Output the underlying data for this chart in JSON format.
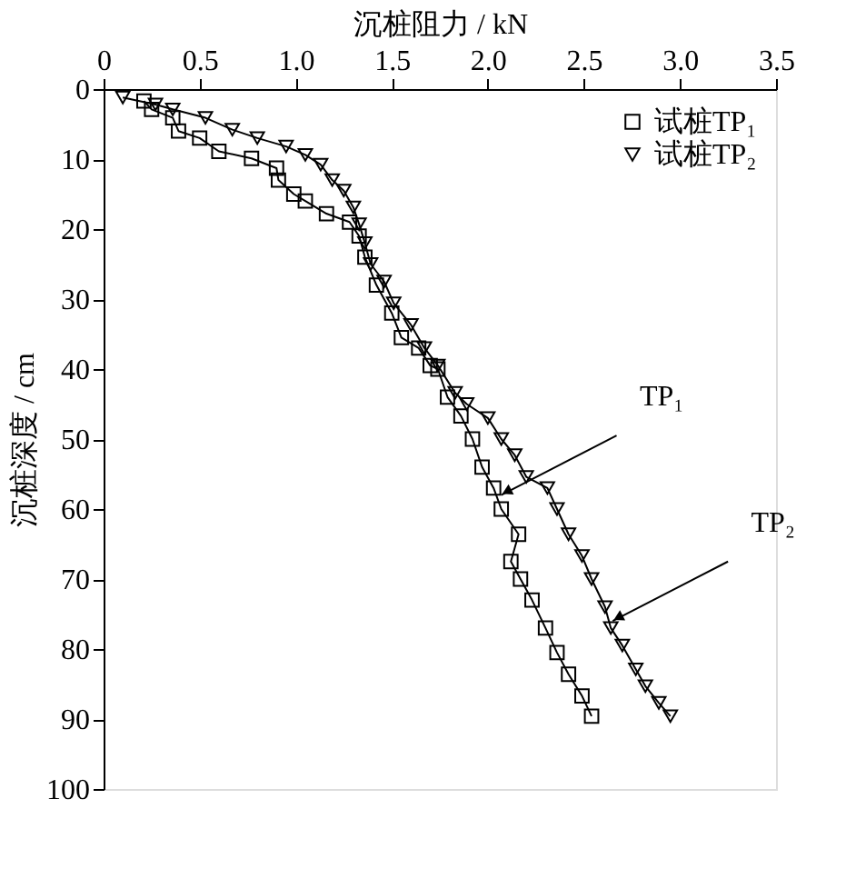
{
  "chart_data": {
    "type": "line",
    "xlabel": "沉桩阻力 / kN",
    "ylabel": "沉桩深度 / cm",
    "xlim": [
      0,
      3.5
    ],
    "ylim": [
      100,
      0
    ],
    "xticks": [
      0,
      0.5,
      {
        "value": 1,
        "label": "1.0"
      },
      1.5,
      {
        "value": 2,
        "label": "2.0"
      },
      2.5,
      {
        "value": 3,
        "label": "3.0"
      },
      3.5
    ],
    "yticks": [
      0,
      10,
      20,
      30,
      40,
      50,
      60,
      70,
      80,
      90,
      100
    ],
    "grid": false,
    "legend": "top right",
    "line_style": "solid",
    "series": [
      {
        "name": "试桩TP₁",
        "color": "#000000",
        "marker": "square",
        "x": [
          0.21,
          0.25,
          0.36,
          0.39,
          0.5,
          0.6,
          0.77,
          0.9,
          0.91,
          0.99,
          1.05,
          1.16,
          1.28,
          1.33,
          1.36,
          1.42,
          1.5,
          1.55,
          1.64,
          1.7,
          1.74,
          1.79,
          1.86,
          1.92,
          1.97,
          2.03,
          2.07,
          2.16,
          2.12,
          2.17,
          2.23,
          2.3,
          2.36,
          2.42,
          2.49,
          2.54
        ],
        "values": [
          1.7,
          2.9,
          4.1,
          6,
          7,
          8.9,
          9.9,
          11.3,
          13,
          15,
          16,
          17.8,
          19,
          21,
          24,
          28,
          32,
          35.5,
          37,
          39.5,
          40,
          44,
          46.7,
          50,
          54,
          57,
          60,
          63.6,
          67.5,
          70,
          73,
          77,
          80.5,
          83.6,
          86.7,
          89.6
        ]
      },
      {
        "name": "试桩TP₂",
        "color": "#000000",
        "marker": "triangle",
        "x": [
          0.1,
          0.27,
          0.36,
          0.53,
          0.67,
          0.8,
          0.95,
          1.05,
          1.13,
          1.19,
          1.25,
          1.3,
          1.33,
          1.36,
          1.39,
          1.46,
          1.51,
          1.6,
          1.67,
          1.74,
          1.83,
          1.89,
          2.0,
          2.07,
          2.14,
          2.2,
          2.31,
          2.36,
          2.42,
          2.49,
          2.54,
          2.61,
          2.64,
          2.7,
          2.77,
          2.82,
          2.89,
          2.95
        ],
        "values": [
          1.2,
          2.2,
          2.9,
          4.1,
          5.8,
          7,
          8.2,
          9.4,
          10.8,
          13,
          14.5,
          16.9,
          19.3,
          22,
          25,
          27.5,
          30.6,
          33.7,
          37,
          39.5,
          43.4,
          45,
          47,
          50,
          52.3,
          55.4,
          57,
          60,
          63.6,
          66.7,
          70,
          74,
          77,
          79.5,
          82.9,
          85.3,
          87.7,
          89.6
        ]
      }
    ],
    "annotations": [
      {
        "text": "TP₁",
        "x": 2.07,
        "y": 58
      },
      {
        "text": "TP₂",
        "x": 2.65,
        "y": 76
      }
    ]
  }
}
